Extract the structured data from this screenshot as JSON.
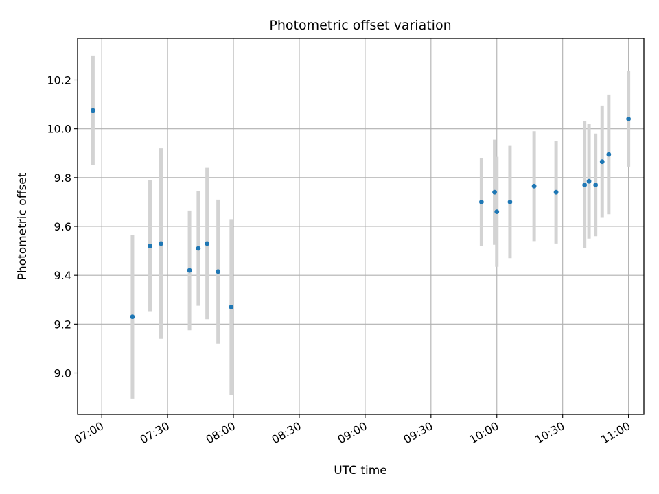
{
  "chart_data": {
    "type": "scatter",
    "title": "Photometric offset variation",
    "xlabel": "UTC time",
    "ylabel": "Photometric offset",
    "x_ticks": [
      "07:00",
      "07:30",
      "08:00",
      "08:30",
      "09:00",
      "09:30",
      "10:00",
      "10:30",
      "11:00"
    ],
    "y_ticks": [
      "9.0",
      "9.2",
      "9.4",
      "9.6",
      "9.8",
      "10.0",
      "10.2"
    ],
    "xlim": [
      "06:49",
      "11:07"
    ],
    "ylim": [
      8.83,
      10.37
    ],
    "grid": true,
    "marker_color": "#1f77b4",
    "errorbar_color": "#d3d3d3",
    "points": [
      {
        "t": "06:56",
        "y": 10.075,
        "err": 0.225
      },
      {
        "t": "07:14",
        "y": 9.23,
        "err": 0.335
      },
      {
        "t": "07:22",
        "y": 9.52,
        "err": 0.27
      },
      {
        "t": "07:27",
        "y": 9.53,
        "err": 0.39
      },
      {
        "t": "07:40",
        "y": 9.42,
        "err": 0.245
      },
      {
        "t": "07:44",
        "y": 9.51,
        "err": 0.235
      },
      {
        "t": "07:48",
        "y": 9.53,
        "err": 0.31
      },
      {
        "t": "07:53",
        "y": 9.415,
        "err": 0.295
      },
      {
        "t": "07:59",
        "y": 9.27,
        "err": 0.36
      },
      {
        "t": "09:53",
        "y": 9.7,
        "err": 0.18
      },
      {
        "t": "09:59",
        "y": 9.74,
        "err": 0.215
      },
      {
        "t": "10:00",
        "y": 9.66,
        "err": 0.225
      },
      {
        "t": "10:06",
        "y": 9.7,
        "err": 0.23
      },
      {
        "t": "10:17",
        "y": 9.765,
        "err": 0.225
      },
      {
        "t": "10:27",
        "y": 9.74,
        "err": 0.21
      },
      {
        "t": "10:40",
        "y": 9.77,
        "err": 0.26
      },
      {
        "t": "10:42",
        "y": 9.785,
        "err": 0.235
      },
      {
        "t": "10:45",
        "y": 9.77,
        "err": 0.21
      },
      {
        "t": "10:48",
        "y": 9.865,
        "err": 0.23
      },
      {
        "t": "10:51",
        "y": 9.895,
        "err": 0.245
      },
      {
        "t": "11:00",
        "y": 10.04,
        "err": 0.195
      }
    ]
  }
}
